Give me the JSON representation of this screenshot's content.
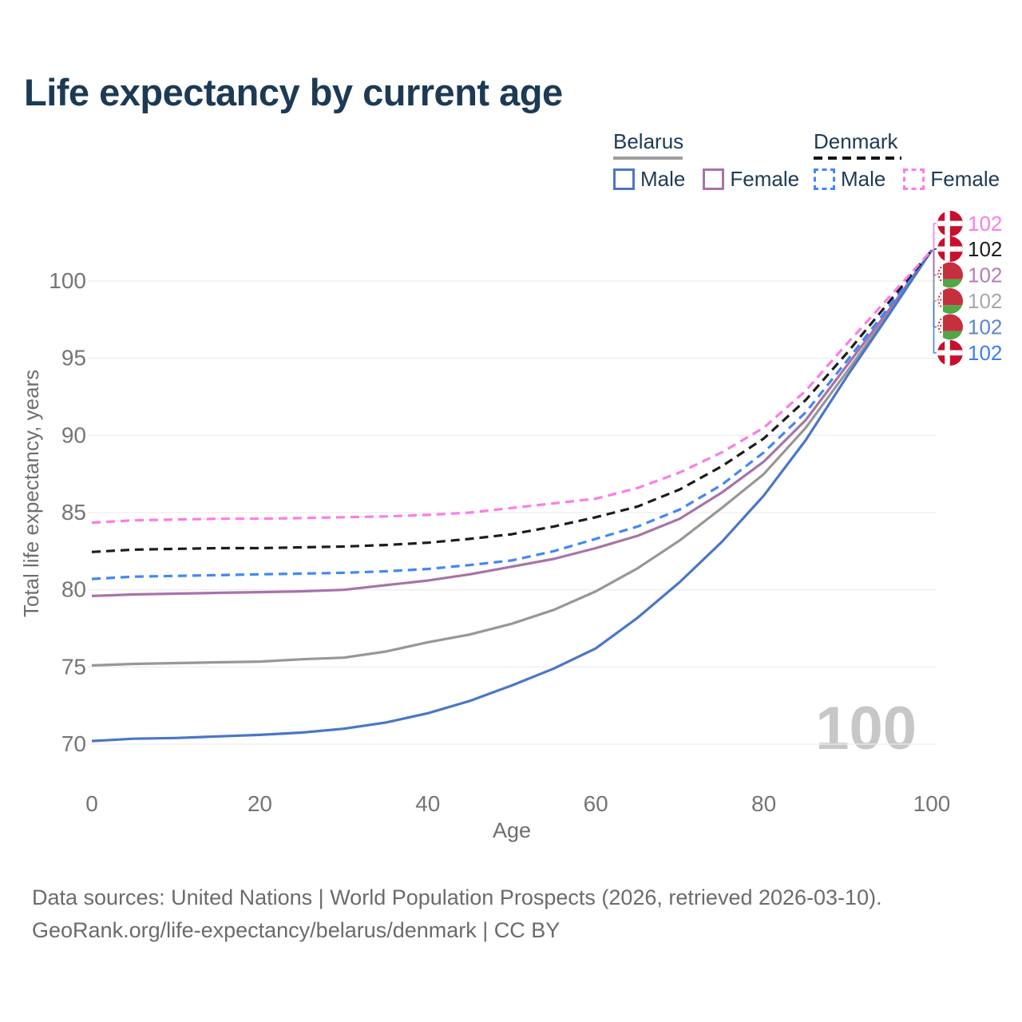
{
  "header": {
    "title": "Life expectancy by current age"
  },
  "legend": {
    "belarus": {
      "title": "Belarus",
      "male": "Male",
      "female": "Female"
    },
    "denmark": {
      "title": "Denmark",
      "male": "Male",
      "female": "Female"
    }
  },
  "colors": {
    "title_text": "#1d3a55",
    "legend_text": "#1e3a54",
    "tick_text": "#757575",
    "axis_title_text": "#6e6e6e",
    "gridline": "#ededed",
    "footer_text": "#6b6b6b",
    "watermark": "#c7c7c7",
    "belarus_male": "#4a76c8",
    "belarus_female": "#a873a8",
    "belarus_total": "#979797",
    "denmark_male": "#4287f5",
    "denmark_female": "#fa7de7",
    "denmark_total": "#1c1c1c",
    "denmark_flag_red": "#c8102e",
    "belarus_flag_red": "#c5303e",
    "belarus_flag_green": "#50a747"
  },
  "chart_data": {
    "type": "line",
    "title": "Life expectancy by current age",
    "xlabel": "Age",
    "ylabel": "Total life expectancy, years",
    "x_ticks": [
      "0",
      "20",
      "40",
      "60",
      "80",
      "100"
    ],
    "y_ticks": [
      "100",
      "95",
      "90",
      "85",
      "80",
      "75",
      "70"
    ],
    "xlim": [
      0,
      100
    ],
    "ylim": [
      70,
      100
    ],
    "grid": "horizontal-only",
    "legend_position": "top-right",
    "age_counter": "100",
    "ages": [
      0,
      5,
      10,
      15,
      20,
      25,
      30,
      35,
      40,
      45,
      50,
      55,
      60,
      65,
      70,
      75,
      80,
      85,
      90,
      95,
      100
    ],
    "series": [
      {
        "id": "belarus_total",
        "name": "Belarus",
        "country": "belarus",
        "style": "solid",
        "color": "#979797",
        "label_color": "#a8a8a8",
        "end_label": "102",
        "label_row": 3,
        "values": [
          75.1,
          75.2,
          75.25,
          75.3,
          75.35,
          75.5,
          75.6,
          76.0,
          76.6,
          77.1,
          77.8,
          78.7,
          79.9,
          81.4,
          83.2,
          85.3,
          87.5,
          90.5,
          94.2,
          98.0,
          102
        ]
      },
      {
        "id": "belarus_female",
        "name": "Belarus Female",
        "country": "belarus",
        "style": "solid",
        "color": "#a873a8",
        "label_color": "#b57cb3",
        "end_label": "102",
        "label_row": 2,
        "values": [
          79.6,
          79.7,
          79.75,
          79.8,
          79.85,
          79.9,
          80.0,
          80.3,
          80.6,
          81.0,
          81.5,
          82.0,
          82.7,
          83.5,
          84.6,
          86.3,
          88.3,
          91.0,
          94.6,
          98.2,
          102
        ]
      },
      {
        "id": "belarus_male",
        "name": "Belarus Male",
        "country": "belarus",
        "style": "solid",
        "color": "#4a76c8",
        "label_color": "#5b85cf",
        "end_label": "102",
        "label_row": 4,
        "values": [
          70.2,
          70.35,
          70.4,
          70.5,
          70.6,
          70.75,
          71.0,
          71.4,
          72.0,
          72.8,
          73.8,
          74.9,
          76.2,
          78.2,
          80.5,
          83.1,
          86.1,
          89.7,
          93.9,
          97.9,
          102
        ]
      },
      {
        "id": "denmark_male",
        "name": "Denmark Male",
        "country": "denmark",
        "style": "dashed",
        "color": "#4287f5",
        "label_color": "#3e7ef2",
        "end_label": "102",
        "label_row": 5,
        "values": [
          80.7,
          80.85,
          80.9,
          80.95,
          81.0,
          81.05,
          81.1,
          81.2,
          81.35,
          81.6,
          81.9,
          82.5,
          83.3,
          84.1,
          85.2,
          86.8,
          88.9,
          91.5,
          94.9,
          98.4,
          102
        ]
      },
      {
        "id": "denmark_total",
        "name": "Denmark",
        "country": "denmark",
        "style": "dashed",
        "color": "#1c1c1c",
        "label_color": "#1c1c1c",
        "end_label": "102",
        "label_row": 1,
        "values": [
          82.45,
          82.6,
          82.65,
          82.7,
          82.7,
          82.75,
          82.8,
          82.9,
          83.05,
          83.3,
          83.6,
          84.1,
          84.7,
          85.4,
          86.5,
          88.0,
          89.8,
          92.3,
          95.4,
          98.7,
          102
        ]
      },
      {
        "id": "denmark_female",
        "name": "Denmark Female",
        "country": "denmark",
        "style": "dashed",
        "color": "#fa7de7",
        "label_color": "#fa7de7",
        "end_label": "102",
        "label_row": 0,
        "values": [
          84.35,
          84.5,
          84.55,
          84.6,
          84.6,
          84.65,
          84.7,
          84.75,
          84.85,
          85.0,
          85.3,
          85.6,
          85.9,
          86.6,
          87.6,
          88.9,
          90.5,
          92.9,
          96.0,
          99.0,
          102
        ]
      }
    ]
  },
  "footer": {
    "line1": "Data sources: United Nations | World Population Prospects (2026, retrieved 2026-03-10).",
    "line2": "GeoRank.org/life-expectancy/belarus/denmark | CC BY"
  }
}
